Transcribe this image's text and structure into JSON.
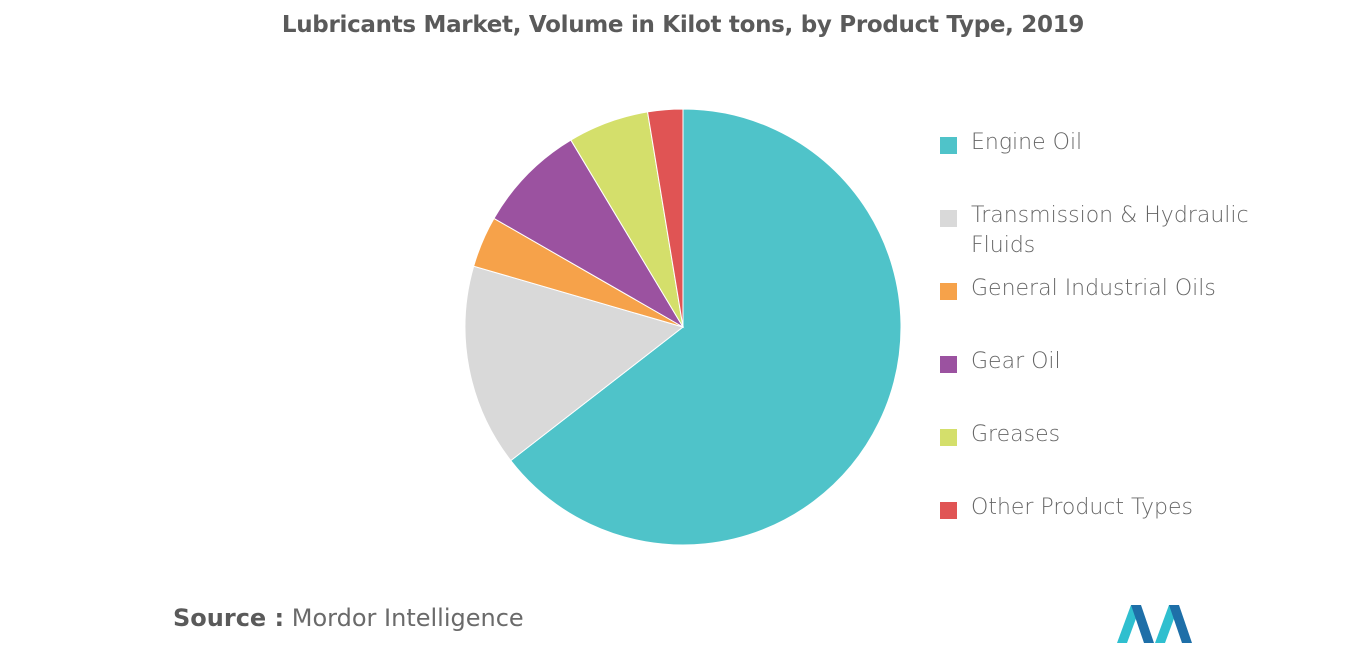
{
  "colors": {
    "engine_oil": "#4fc3c9",
    "transmission": "#d9d9d9",
    "industrial": "#f6a24a",
    "gear": "#9b52a0",
    "greases": "#d4df6b",
    "other": "#e05454",
    "logo_teal": "#2fbfcf",
    "logo_dark": "#1e6fa8"
  },
  "chart_data": {
    "type": "pie",
    "title": "Lubricants Market, Volume in Kilot tons, by Product Type, 2019",
    "unit": "% share",
    "legend_position": "right",
    "start_angle_deg": 0,
    "direction": "clockwise",
    "slices": [
      {
        "label": "Engine Oil",
        "value": 64.5,
        "color_key": "engine_oil"
      },
      {
        "label": "Transmission & Hydraulic Fluids",
        "value": 15.0,
        "color_key": "transmission"
      },
      {
        "label": "General Industrial Oils",
        "value": 3.8,
        "color_key": "industrial"
      },
      {
        "label": "Gear Oil",
        "value": 8.1,
        "color_key": "gear"
      },
      {
        "label": "Greases",
        "value": 6.0,
        "color_key": "greases"
      },
      {
        "label": "Other Product Types",
        "value": 2.6,
        "color_key": "other"
      }
    ]
  },
  "source": {
    "key": "Source :",
    "value": " Mordor Intelligence"
  },
  "logo": {
    "icon": "mordor-intelligence-logo-icon"
  }
}
